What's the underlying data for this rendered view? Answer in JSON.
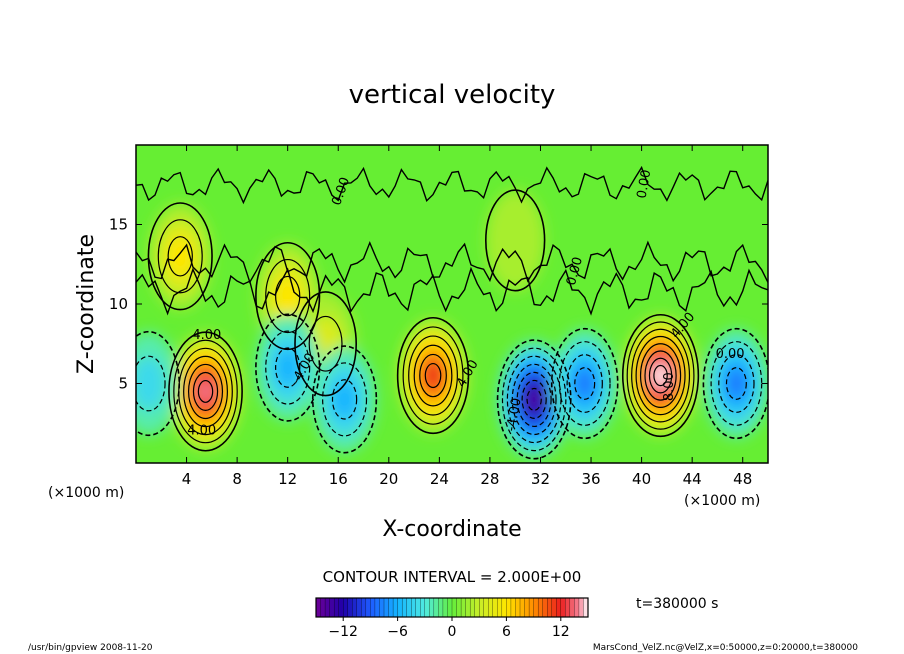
{
  "chart_data": {
    "type": "heatmap",
    "title": "vertical velocity",
    "xlabel": "X-coordinate",
    "ylabel": "Z-coordinate",
    "x_unit_left": "(×1000 m)",
    "x_unit_right": "(×1000 m)",
    "xlim": [
      0,
      50
    ],
    "ylim": [
      0,
      20
    ],
    "x_ticks": [
      "4",
      "8",
      "12",
      "16",
      "20",
      "24",
      "28",
      "32",
      "36",
      "40",
      "44",
      "48"
    ],
    "y_ticks": [
      "5",
      "10",
      "15"
    ],
    "contour_interval_label": "CONTOUR INTERVAL = 2.000E+00",
    "contour_labels": [
      "4.00",
      "4.00",
      "4.00",
      "4.00",
      "-4.00",
      "-4.00",
      "0.00",
      "0.00",
      "0.00",
      "8.00",
      "0.00"
    ],
    "cells": [
      {
        "x": 5.5,
        "z": 4.5,
        "value": 13
      },
      {
        "x": 23.5,
        "z": 5.5,
        "value": 11
      },
      {
        "x": 31.5,
        "z": 4,
        "value": -13
      },
      {
        "x": 41.5,
        "z": 5.5,
        "value": 16
      },
      {
        "x": 12,
        "z": 10.5,
        "value": 5
      },
      {
        "x": 3.5,
        "z": 13,
        "value": 5
      },
      {
        "x": 15,
        "z": 7.5,
        "value": 3
      },
      {
        "x": 12,
        "z": 6,
        "value": -5
      },
      {
        "x": 16.5,
        "z": 4,
        "value": -6
      },
      {
        "x": 1,
        "z": 5,
        "value": -4
      },
      {
        "x": 35.5,
        "z": 5,
        "value": -8
      },
      {
        "x": 47.5,
        "z": 5,
        "value": -7
      },
      {
        "x": 30,
        "z": 14,
        "value": 2
      }
    ],
    "colorbar": {
      "min": -15,
      "max": 15,
      "ticks": [
        "-12",
        "-6",
        "0",
        "6",
        "12"
      ]
    },
    "time_label": "t=380000 s"
  },
  "footer": {
    "left": "/usr/bin/gpview  2008-11-20",
    "right": "MarsCond_VelZ.nc@VelZ,x=0:50000,z=0:20000,t=380000"
  }
}
